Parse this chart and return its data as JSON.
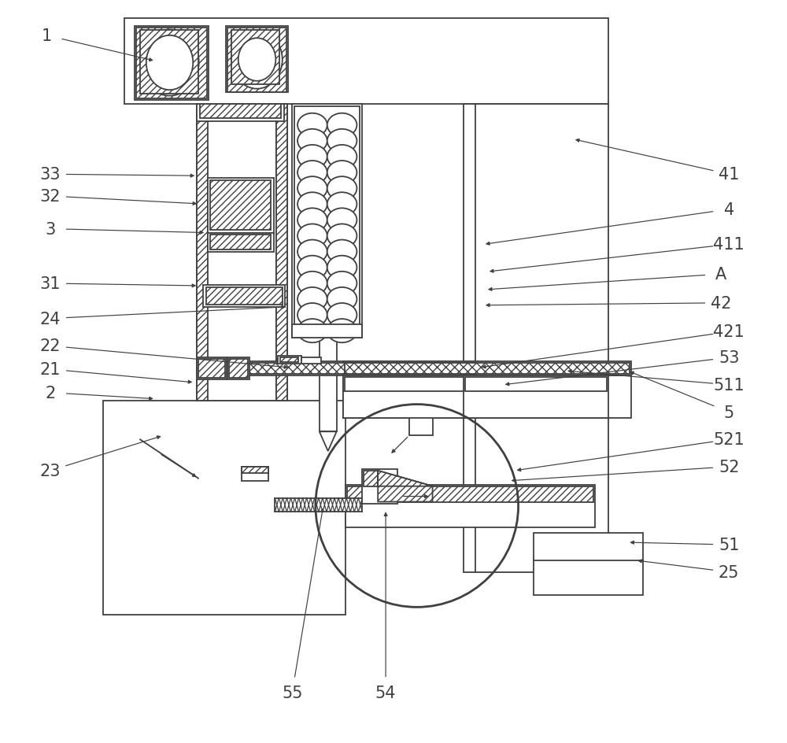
{
  "bg": "#ffffff",
  "lc": "#404040",
  "lw": 1.3,
  "fw": 10.0,
  "fh": 9.45,
  "labels": [
    [
      "1",
      55,
      42,
      195,
      75
    ],
    [
      "33",
      60,
      220,
      248,
      222
    ],
    [
      "32",
      60,
      248,
      251,
      258
    ],
    [
      "3",
      60,
      290,
      260,
      295
    ],
    [
      "31",
      60,
      360,
      250,
      363
    ],
    [
      "24",
      60,
      405,
      365,
      390
    ],
    [
      "22",
      60,
      440,
      368,
      468
    ],
    [
      "21",
      60,
      470,
      245,
      487
    ],
    [
      "2",
      60,
      500,
      195,
      508
    ],
    [
      "23",
      60,
      600,
      205,
      555
    ],
    [
      "41",
      930,
      220,
      730,
      175
    ],
    [
      "4",
      930,
      265,
      615,
      310
    ],
    [
      "411",
      930,
      310,
      620,
      345
    ],
    [
      "A",
      920,
      348,
      618,
      368
    ],
    [
      "42",
      920,
      385,
      615,
      388
    ],
    [
      "421",
      930,
      422,
      610,
      468
    ],
    [
      "53",
      930,
      455,
      640,
      490
    ],
    [
      "511",
      930,
      490,
      720,
      472
    ],
    [
      "5",
      930,
      525,
      800,
      472
    ],
    [
      "521",
      930,
      560,
      655,
      600
    ],
    [
      "52",
      930,
      595,
      648,
      613
    ],
    [
      "51",
      930,
      695,
      800,
      692
    ],
    [
      "25",
      930,
      730,
      810,
      715
    ],
    [
      "55",
      370,
      885,
      410,
      645
    ],
    [
      "54",
      490,
      885,
      490,
      650
    ]
  ]
}
